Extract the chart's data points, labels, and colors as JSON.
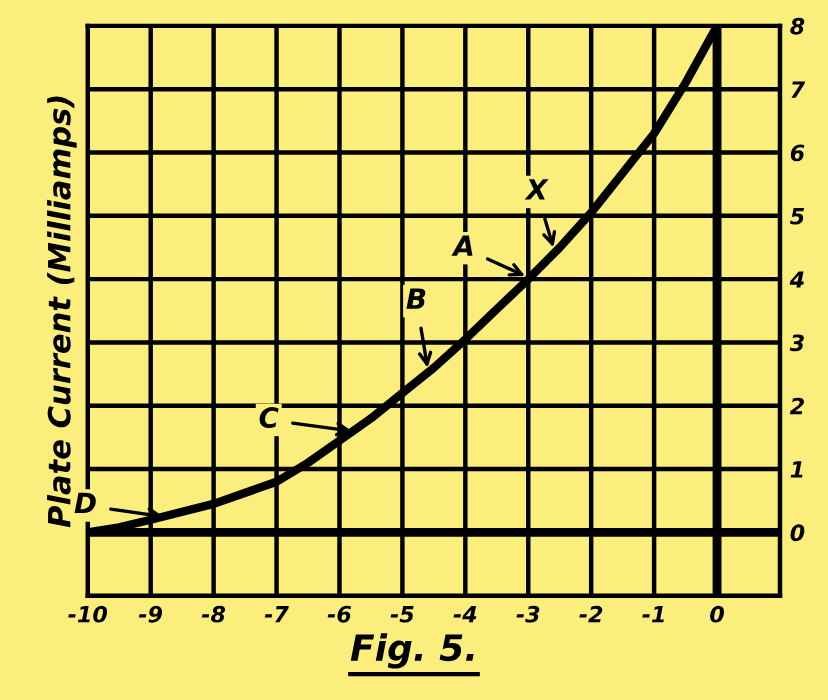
{
  "chart_data": {
    "type": "line",
    "title": "Fig. 5.",
    "ylabel": "Plate Current (Milliamps)",
    "x": [
      -10,
      -9.5,
      -9,
      -8,
      -7,
      -6.5,
      -6,
      -5.5,
      -5,
      -4.5,
      -4,
      -3,
      -2.5,
      -2,
      -1,
      -0.5,
      0
    ],
    "series": [
      {
        "color": "#000000",
        "values": [
          0.0,
          0.08,
          0.2,
          0.45,
          0.8,
          1.1,
          1.45,
          1.8,
          2.2,
          2.6,
          3.05,
          4.0,
          4.5,
          5.05,
          6.3,
          7.1,
          8.0
        ]
      }
    ],
    "xlim": [
      -10,
      1
    ],
    "ylim": [
      -1,
      8
    ],
    "xticks": [
      -10,
      -9,
      -8,
      -7,
      -6,
      -5,
      -4,
      -3,
      -2,
      -1,
      0
    ],
    "yticks": [
      0,
      1,
      2,
      3,
      4,
      5,
      6,
      7,
      8
    ],
    "grid": true,
    "marker": "none",
    "line_style": "solid",
    "annotations": [
      {
        "text": "X",
        "x": -2.6,
        "y": 4.5
      },
      {
        "text": "A",
        "x": -3.05,
        "y": 4.05
      },
      {
        "text": "B",
        "x": -4.6,
        "y": 2.6
      },
      {
        "text": "C",
        "x": -5.8,
        "y": 1.6
      },
      {
        "text": "D",
        "x": -8.8,
        "y": 0.25
      }
    ]
  }
}
